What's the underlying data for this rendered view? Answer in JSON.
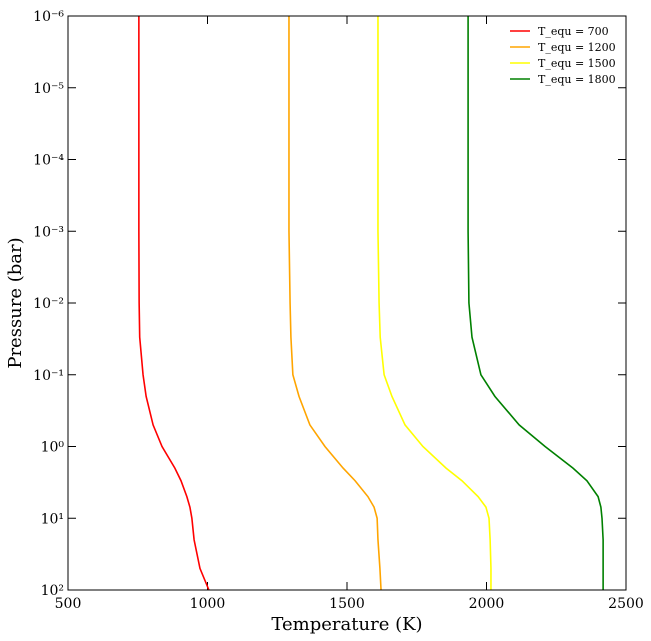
{
  "chart_data": {
    "type": "line",
    "xlabel": "Temperature (K)",
    "ylabel": "Pressure (bar)",
    "y": [
      1e-06,
      1e-05,
      0.0001,
      0.001,
      0.01,
      0.03,
      0.1,
      0.2,
      0.5,
      1,
      2,
      3,
      5,
      7,
      10,
      20,
      50,
      100
    ],
    "series": [
      {
        "name": "T_equ = 700",
        "color": "#ff0000",
        "x": [
          754,
          754,
          754,
          754,
          755,
          757,
          769,
          780,
          805,
          837,
          883,
          905,
          926,
          937,
          944,
          952,
          973,
          1005
        ]
      },
      {
        "name": "T_equ = 1200",
        "color": "#ffa500",
        "x": [
          1292,
          1292,
          1292,
          1292,
          1296,
          1299,
          1306,
          1328,
          1367,
          1421,
          1486,
          1529,
          1575,
          1597,
          1608,
          1611,
          1618,
          1622
        ]
      },
      {
        "name": "T_equ = 1500",
        "color": "#ffff00",
        "x": [
          1611,
          1611,
          1611,
          1611,
          1615,
          1619,
          1633,
          1661,
          1708,
          1772,
          1855,
          1912,
          1970,
          1998,
          2009,
          2013,
          2016,
          2016
        ]
      },
      {
        "name": "T_equ = 1800",
        "color": "#008000",
        "x": [
          1934,
          1934,
          1934,
          1934,
          1937,
          1948,
          1980,
          2030,
          2117,
          2210,
          2310,
          2360,
          2400,
          2410,
          2414,
          2418,
          2418,
          2418
        ]
      }
    ],
    "xlim": [
      500,
      2500
    ],
    "xticks": [
      500,
      1000,
      1500,
      2000,
      2500
    ],
    "ylim": [
      100,
      1e-06
    ],
    "yscale": "log",
    "yticks": [
      {
        "value": 1e-06,
        "label": "10⁻⁶"
      },
      {
        "value": 1e-05,
        "label": "10⁻⁵"
      },
      {
        "value": 0.0001,
        "label": "10⁻⁴"
      },
      {
        "value": 0.001,
        "label": "10⁻³"
      },
      {
        "value": 0.01,
        "label": "10⁻²"
      },
      {
        "value": 0.1,
        "label": "10⁻¹"
      },
      {
        "value": 1,
        "label": "10⁰"
      },
      {
        "value": 10,
        "label": "10¹"
      },
      {
        "value": 100,
        "label": "10²"
      }
    ],
    "legend": "upper right",
    "grid": false
  }
}
